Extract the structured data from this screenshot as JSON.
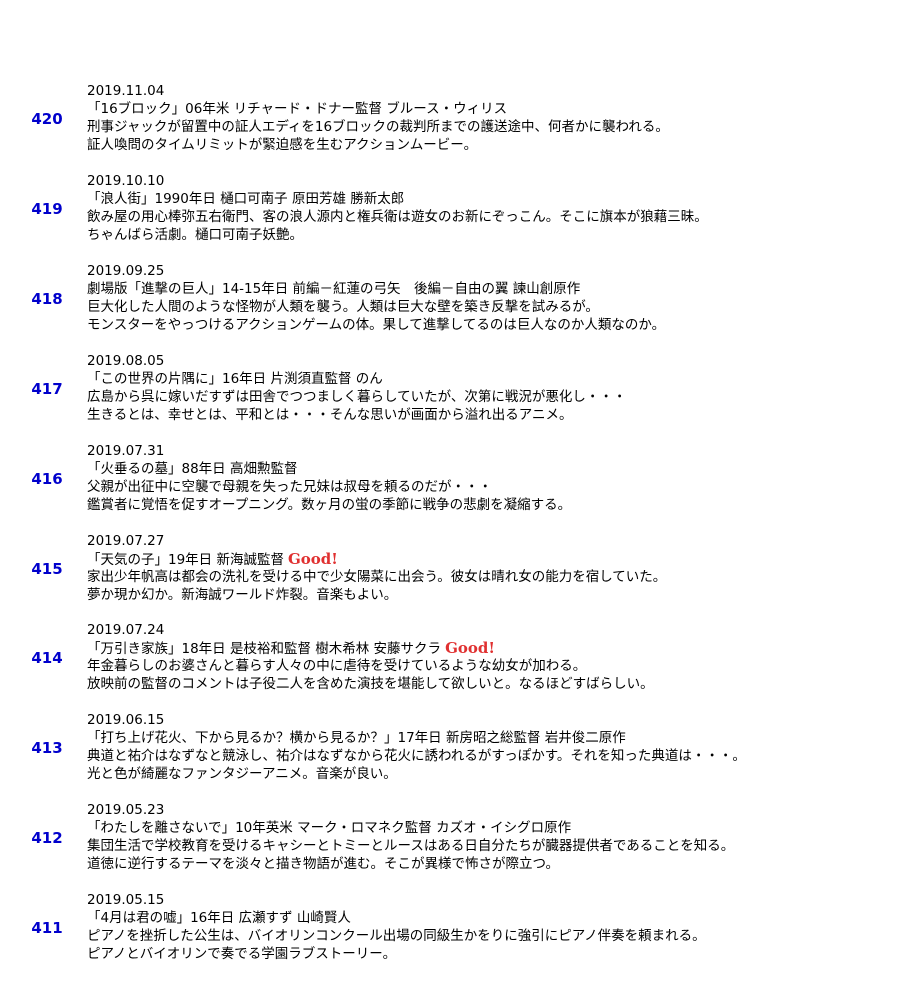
{
  "entries": [
    {
      "number": 420,
      "date": "2019.11.04",
      "title": "「16ブロック」06年米 リチャード・ドナー監督 ブルース・ウィリス",
      "lines": [
        "刑事ジャックが留置中の証人エディを16ブロックの裁判所までの護送途中、何者かに襲われる。",
        "証人喚問のタイムリミットが緊迫感を生むアクションムービー。"
      ]
    },
    {
      "number": 419,
      "date": "2019.10.10",
      "title": "「浪人街」1990年日 樋口可南子 原田芳雄 勝新太郎",
      "lines": [
        "飲み屋の用心棒弥五右衛門、客の浪人源内と権兵衛は遊女のお新にぞっこん。そこに旗本が狼藉三昧。",
        "ちゃんばら活劇。樋口可南子妖艶。"
      ]
    },
    {
      "number": 418,
      "date": "2019.09.25",
      "title": "劇場版「進撃の巨人」14-15年日 前編－紅蓮の弓矢　後編－自由の翼 諫山創原作",
      "lines": [
        "巨大化した人間のような怪物が人類を襲う。人類は巨大な壁を築き反撃を試みるが。",
        "モンスターをやっつけるアクションゲームの体。果して進撃してるのは巨人なのか人類なのか。"
      ]
    },
    {
      "number": 417,
      "date": "2019.08.05",
      "title": "「この世界の片隅に」16年日 片渕須直監督 のん",
      "lines": [
        "広島から呉に嫁いだすずは田舎でつつましく暮らしていたが、次第に戦況が悪化し・・・",
        "生きるとは、幸せとは、平和とは・・・そんな思いが画面から溢れ出るアニメ。"
      ]
    },
    {
      "number": 416,
      "date": "2019.07.31",
      "title": "「火垂るの墓」88年日 高畑勲監督",
      "lines": [
        "父親が出征中に空襲で母親を失った兄妹は叔母を頼るのだが・・・",
        "鑑賞者に覚悟を促すオープニング。数ヶ月の蛍の季節に戦争の悲劇を凝縮する。"
      ]
    },
    {
      "number": 415,
      "date": "2019.07.27",
      "title": "「天気の子」19年日 新海誠監督",
      "good": "Good!",
      "lines": [
        "家出少年帆高は都会の洗礼を受ける中で少女陽菜に出会う。彼女は晴れ女の能力を宿していた。",
        "夢か現か幻か。新海誠ワールド炸裂。音楽もよい。"
      ]
    },
    {
      "number": 414,
      "date": "2019.07.24",
      "title": "「万引き家族」18年日 是枝裕和監督 樹木希林 安藤サクラ",
      "good": "Good!",
      "lines": [
        "年金暮らしのお婆さんと暮らす人々の中に虐待を受けているような幼女が加わる。",
        "放映前の監督のコメントは子役二人を含めた演技を堪能して欲しいと。なるほどすばらしい。"
      ]
    },
    {
      "number": 413,
      "date": "2019.06.15",
      "title": "「打ち上げ花火、下から見るか？横から見るか？」17年日 新房昭之総監督 岩井俊二原作",
      "lines": [
        "典道と祐介はなずなと競泳し、祐介はなずなから花火に誘われるがすっぽかす。それを知った典道は・・・。",
        "光と色が綺麗なファンタジーアニメ。音楽が良い。"
      ]
    },
    {
      "number": 412,
      "date": "2019.05.23",
      "title": "「わたしを離さないで」10年英米 マーク・ロマネク監督 カズオ・イシグロ原作",
      "lines": [
        "集団生活で学校教育を受けるキャシーとトミーとルースはある日自分たちが臓器提供者であることを知る。",
        "道徳に逆行するテーマを淡々と描き物語が進む。そこが異様で怖さが際立つ。"
      ]
    },
    {
      "number": 411,
      "date": "2019.05.15",
      "title": "「4月は君の嘘」16年日 広瀬すず 山崎賢人",
      "lines": [
        "ピアノを挫折した公生は、バイオリンコンクール出場の同級生かをりに強引にピアノ伴奏を頼まれる。",
        "ピアノとバイオリンで奏でる学園ラブストーリー。"
      ]
    }
  ]
}
